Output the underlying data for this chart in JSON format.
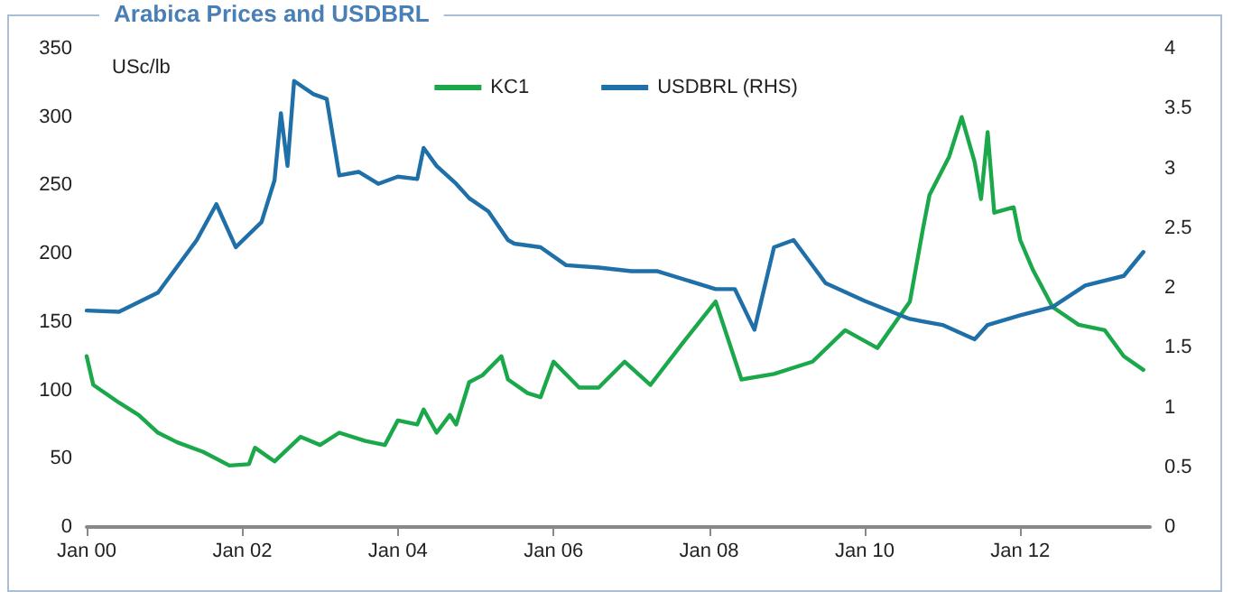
{
  "chart_data": {
    "type": "line",
    "title": "Arabica Prices and USDBRL",
    "ylabel": "USc/lb",
    "xlim": [
      "2000-01",
      "2013-09"
    ],
    "xticks": [
      {
        "value": "2000-01",
        "label": "Jan 00"
      },
      {
        "value": "2002-01",
        "label": "Jan 02"
      },
      {
        "value": "2004-01",
        "label": "Jan 04"
      },
      {
        "value": "2006-01",
        "label": "Jan 06"
      },
      {
        "value": "2008-01",
        "label": "Jan 08"
      },
      {
        "value": "2010-01",
        "label": "Jan 10"
      },
      {
        "value": "2012-01",
        "label": "Jan 12"
      }
    ],
    "ylim": [
      0,
      350
    ],
    "yticks": [
      0,
      50,
      100,
      150,
      200,
      250,
      300,
      350
    ],
    "y2lim": [
      0,
      4
    ],
    "y2ticks": [
      0,
      0.5,
      1,
      1.5,
      2,
      2.5,
      3,
      3.5,
      4
    ],
    "grid": false,
    "legend": "top",
    "marker": "none",
    "line_style": "solid",
    "series": [
      {
        "name": "KC1",
        "color": "#1aa84a",
        "x": [
          "2000-01",
          "2000-02",
          "2000-06",
          "2000-09",
          "2000-12",
          "2001-03",
          "2001-07",
          "2001-11",
          "2002-02",
          "2002-03",
          "2002-06",
          "2002-10",
          "2003-01",
          "2003-04",
          "2003-08",
          "2003-11",
          "2004-01",
          "2004-04",
          "2004-05",
          "2004-07",
          "2004-09",
          "2004-10",
          "2004-12",
          "2005-02",
          "2005-05",
          "2005-06",
          "2005-09",
          "2005-11",
          "2006-01",
          "2006-05",
          "2006-08",
          "2006-12",
          "2007-04",
          "2007-09",
          "2008-02",
          "2008-06",
          "2008-11",
          "2009-05",
          "2009-10",
          "2010-03",
          "2010-08",
          "2010-10",
          "2010-11",
          "2011-02",
          "2011-04",
          "2011-06",
          "2011-07",
          "2011-08",
          "2011-09",
          "2011-12",
          "2012-01",
          "2012-03",
          "2012-06",
          "2012-10",
          "2013-02",
          "2013-05",
          "2013-08"
        ],
        "values": [
          125,
          104,
          91,
          82,
          69,
          62,
          55,
          45,
          46,
          58,
          48,
          66,
          60,
          69,
          63,
          60,
          78,
          75,
          86,
          69,
          82,
          75,
          106,
          111,
          125,
          108,
          98,
          95,
          121,
          102,
          102,
          121,
          104,
          135,
          165,
          108,
          112,
          121,
          144,
          131,
          165,
          218,
          243,
          271,
          300,
          267,
          240,
          289,
          230,
          234,
          210,
          188,
          161,
          148,
          144,
          125,
          115
        ]
      },
      {
        "name": "USDBRL (RHS)",
        "color": "#1f6fa8",
        "axis": "y2",
        "x": [
          "2000-01",
          "2000-06",
          "2000-12",
          "2001-06",
          "2001-09",
          "2001-12",
          "2002-04",
          "2002-06",
          "2002-07",
          "2002-08",
          "2002-09",
          "2002-12",
          "2003-02",
          "2003-04",
          "2003-07",
          "2003-10",
          "2004-01",
          "2004-04",
          "2004-05",
          "2004-07",
          "2004-10",
          "2004-12",
          "2005-03",
          "2005-06",
          "2005-07",
          "2005-11",
          "2006-03",
          "2006-08",
          "2007-01",
          "2007-05",
          "2008-02",
          "2008-05",
          "2008-08",
          "2008-11",
          "2009-02",
          "2009-07",
          "2010-01",
          "2010-08",
          "2011-01",
          "2011-06",
          "2011-08",
          "2012-01",
          "2012-06",
          "2012-11",
          "2013-05",
          "2013-08"
        ],
        "values": [
          1.81,
          1.8,
          1.96,
          2.4,
          2.7,
          2.34,
          2.55,
          2.9,
          3.46,
          3.02,
          3.73,
          3.62,
          3.58,
          2.94,
          2.97,
          2.87,
          2.93,
          2.91,
          3.17,
          3.02,
          2.87,
          2.75,
          2.64,
          2.4,
          2.37,
          2.34,
          2.19,
          2.17,
          2.14,
          2.14,
          1.99,
          1.99,
          1.65,
          2.34,
          2.4,
          2.04,
          1.89,
          1.74,
          1.69,
          1.57,
          1.69,
          1.77,
          1.84,
          2.02,
          2.1,
          2.3
        ]
      }
    ]
  }
}
